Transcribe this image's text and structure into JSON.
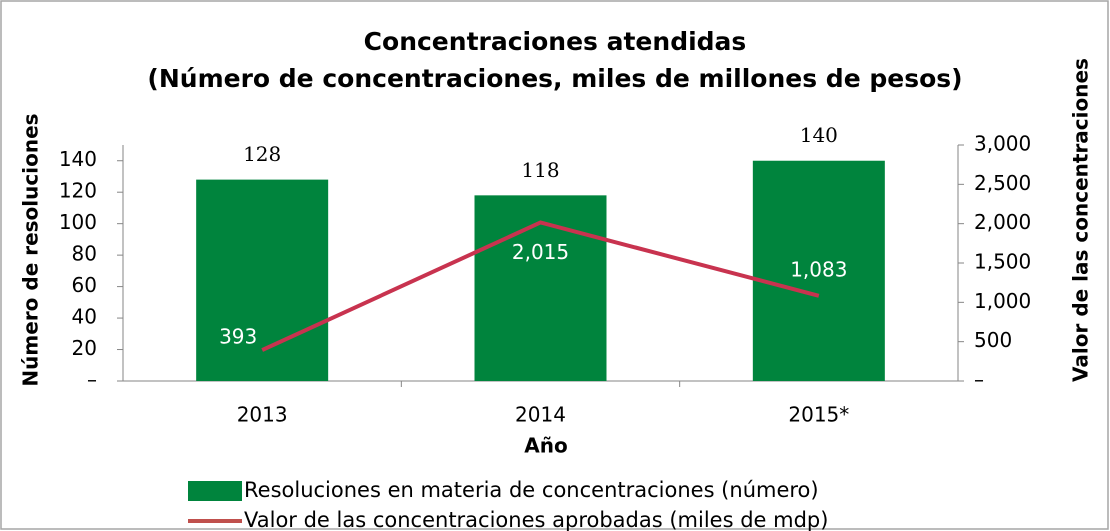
{
  "chart_data": {
    "type": "bar_line",
    "title": "Concentraciones atendidas",
    "subtitle": "(Número de concentraciones, miles de millones de pesos)",
    "x_label": "Año",
    "y_label": "Número de resoluciones",
    "y2_label": "Valor de las concentraciones",
    "categories": [
      "2013",
      "2014",
      "2015*"
    ],
    "series": [
      {
        "name": "Resoluciones en materia de concentraciones (número)",
        "type": "bar",
        "color": "#00843d",
        "values": [
          128,
          118,
          140
        ]
      },
      {
        "name": "Valor de las concentraciones aprobadas (miles de mdp)",
        "type": "line",
        "axis": "y2",
        "color": "#c8334f",
        "legend_color": "#c0504d",
        "values": [
          393,
          2015,
          1083
        ],
        "value_labels": [
          "393",
          "2,015",
          "1,083"
        ]
      }
    ],
    "ylim": [
      0,
      150
    ],
    "yticks": [
      {
        "value": 0,
        "label": "–"
      },
      20,
      40,
      60,
      80,
      100,
      120,
      140
    ],
    "y2lim": [
      0,
      3000
    ],
    "y2ticks": [
      {
        "value": 0,
        "label": "–"
      },
      500,
      {
        "value": 1000,
        "label": "1,000"
      },
      {
        "value": 1500,
        "label": "1,500"
      },
      {
        "value": 2000,
        "label": "2,000"
      },
      {
        "value": 2500,
        "label": "2,500"
      },
      {
        "value": 3000,
        "label": "3,000"
      }
    ],
    "legend": "bottom"
  }
}
